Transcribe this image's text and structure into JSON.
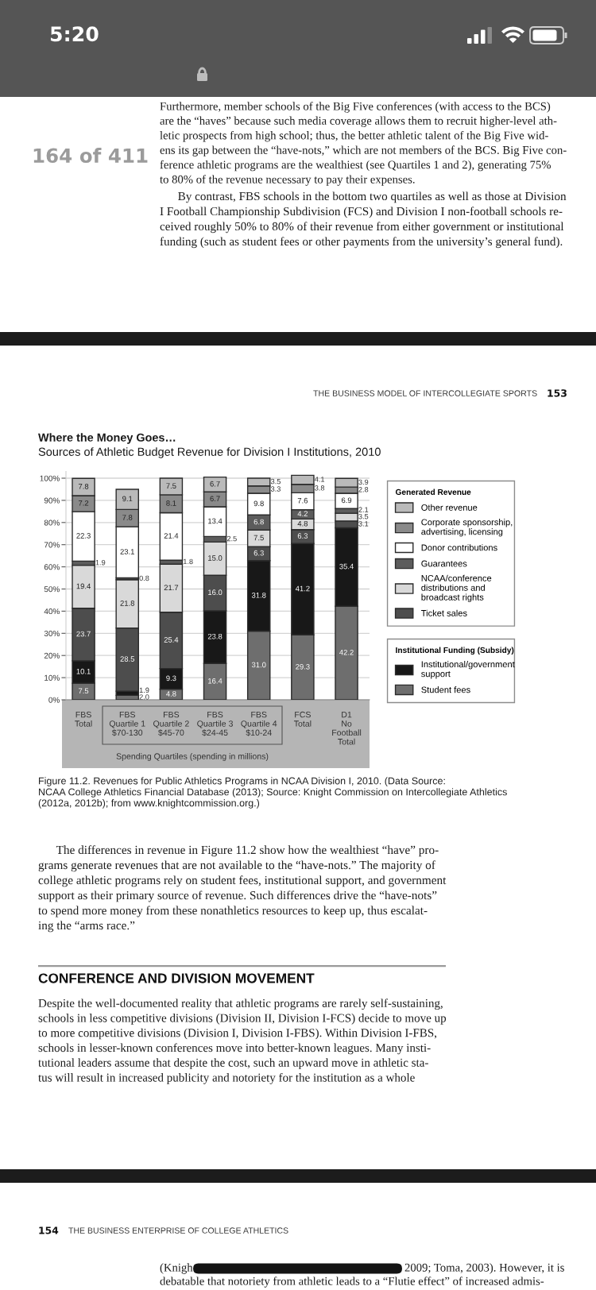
{
  "chart_data": {
    "type": "bar",
    "stacked": true,
    "title": "Where the Money Goes…",
    "subtitle": "Sources of Athletic Budget Revenue for Division I Institutions, 2010",
    "xlabel": "Spending Quartiles (spending in millions)",
    "legend_title": "Generated Revenue",
    "categories": [
      "FBS\nTotal",
      "FBS\nQuartile 1\n$70-130",
      "FBS\nQuartile 2\n$45-70",
      "FBS\nQuartile 3\n$24-45",
      "FBS\nQuartile 4\n$10-24",
      "FCS\nTotal",
      "D1\nNo\nFootball\nTotal"
    ],
    "series": [
      {
        "name": "Student fees",
        "color": "#6e6e6e",
        "values": [
          7.5,
          2.0,
          4.8,
          16.4,
          31.0,
          29.3,
          42.2
        ],
        "value_labels": [
          "7.5",
          "2.0",
          "4.8",
          "16.4",
          "31.0",
          "29.3",
          "42.2"
        ]
      },
      {
        "name": "Institutional/government\nsupport",
        "color": "#181818",
        "values": [
          10.1,
          1.9,
          9.3,
          23.8,
          31.8,
          41.2,
          35.4
        ],
        "value_labels": [
          "10.1",
          "1.9",
          "9.3",
          "23.8",
          "31.8",
          "41.2",
          "35.4"
        ]
      },
      {
        "name": "Ticket sales",
        "color": "#4d4d4d",
        "values": [
          23.7,
          28.5,
          25.4,
          16.0,
          6.3,
          6.3,
          3.1
        ],
        "value_labels": [
          "23.7",
          "28.5",
          "25.4",
          "16.0",
          "6.3",
          "6.3",
          "3.1"
        ]
      },
      {
        "name": "NCAA/conference\ndistributions and\nbroadcast rights",
        "color": "#d9d9d9",
        "values": [
          19.4,
          21.8,
          21.7,
          15.0,
          7.5,
          4.8,
          3.5
        ],
        "value_labels": [
          "19.4",
          "21.8",
          "21.7",
          "15.0",
          "7.5",
          "4.8",
          "3.5"
        ]
      },
      {
        "name": "Guarantees",
        "color": "#5c5c5c",
        "values": [
          1.9,
          0.8,
          1.8,
          2.5,
          6.8,
          4.2,
          2.1
        ],
        "value_labels": [
          "1.9",
          "0.8",
          "1.8",
          "2.5",
          "6.8",
          "4.2",
          "2.1"
        ]
      },
      {
        "name": "Donor contributions",
        "color": "#ffffff",
        "values": [
          22.3,
          23.1,
          21.4,
          13.4,
          9.8,
          7.6,
          6.9
        ],
        "value_labels": [
          "22.3",
          "23.1",
          "21.4",
          "13.4",
          "9.8",
          "7.6",
          "6.9"
        ]
      },
      {
        "name": "Corporate sponsorship,\nadvertising, licensing",
        "color": "#8a8a8a",
        "values": [
          7.2,
          7.8,
          8.1,
          6.7,
          3.3,
          3.8,
          2.8
        ],
        "value_labels": [
          "7.2",
          "7.8",
          "8.1",
          "6.7",
          "3.3",
          "3.8",
          "2.8"
        ]
      },
      {
        "name": "Other revenue",
        "color": "#bababa",
        "values": [
          7.8,
          9.1,
          7.5,
          6.7,
          3.5,
          4.1,
          3.9
        ],
        "value_labels": [
          "7.8",
          "9.1",
          "7.5",
          "6.7",
          "3.5",
          "4.1",
          "3.9"
        ]
      }
    ],
    "ylim": [
      0,
      103
    ],
    "yticks": [
      {
        "value": 0,
        "label": "0%"
      },
      {
        "value": 10,
        "label": "10%"
      },
      {
        "value": 20,
        "label": "20%"
      },
      {
        "value": 30,
        "label": "30%"
      },
      {
        "value": 40,
        "label": "40%"
      },
      {
        "value": 50,
        "label": "50%"
      },
      {
        "value": 60,
        "label": "60%"
      },
      {
        "value": 70,
        "label": "70%"
      },
      {
        "value": 80,
        "label": "80%"
      },
      {
        "value": 90,
        "label": "90%"
      },
      {
        "value": 100,
        "label": "100%"
      }
    ],
    "grid": "y",
    "legend": "right",
    "annotations": [
      "Institutional Funding (Subsidy)",
      "5:20",
      "164 of 411",
      "Furthermore, member schools of the Big Five conferences (with access to the BCS)\nare the “haves” because such media coverage allows them to recruit higher-level ath-\nletic prospects from high school; thus, the better athletic talent of the Big Five wid-\nens its gap between the “have-nots,” which are not members of the BCS. Big Five con-\nference athletic programs are the wealthiest (see Quartiles 1 and 2), generating 75%\nto 80% of the revenue necessary to pay their expenses.",
      "      By contrast, FBS schools in the bottom two quartiles as well as those at Division\nI Football Championship Subdivision (FCS) and Division I non-football schools re-\nceived roughly 50% to 80% of their revenue from either government or institutional\nfunding (such as student fees or other payments from the university’s general fund).",
      "THE BUSINESS MODEL OF INTERCOLLEGIATE SPORTS",
      "153",
      "Figure 11.2. Revenues for Public Athletics Programs in NCAA Division I, 2010. (Data Source:\nNCAA College Athletics Financial Database (2013); Source: Knight Commission on Intercollegiate Athletics\n(2012a, 2012b); from www.knightcommission.org.)",
      "      The differences in revenue in Figure 11.2 show how the wealthiest “have” pro-\ngrams generate revenues that are not available to the “have-nots.” The majority of\ncollege athletic programs rely on student fees, institutional support, and government\nsupport as their primary source of revenue. Such differences drive the “have-nots”\nto spend more money from these nonathletics resources to keep up, thus escalat-\ning the “arms race.”",
      "CONFERENCE AND DIVISION MOVEMENT",
      "Despite the well-documented reality that athletic programs are rarely self-sustaining,\nschools in less competitive divisions (Division II, Division I-FCS) decide to move up\nto more competitive divisions (Division I, Division I-FBS). Within Division I-FBS,\nschools in lesser-known conferences move into better-known leagues. Many insti-\ntutional leaders assume that despite the cost, such an upward move in athletic sta-\ntus will result in increased publicity and notoriety for the institution as a whole",
      "154",
      "THE BUSINESS ENTERPRISE OF COLLEGE ATHLETICS",
      "(Knigh",
      "2009; Toma, 2003). However, it is",
      "debatable that notoriety from athletic leads to a “Flutie effect” of increased admis-"
    ]
  }
}
